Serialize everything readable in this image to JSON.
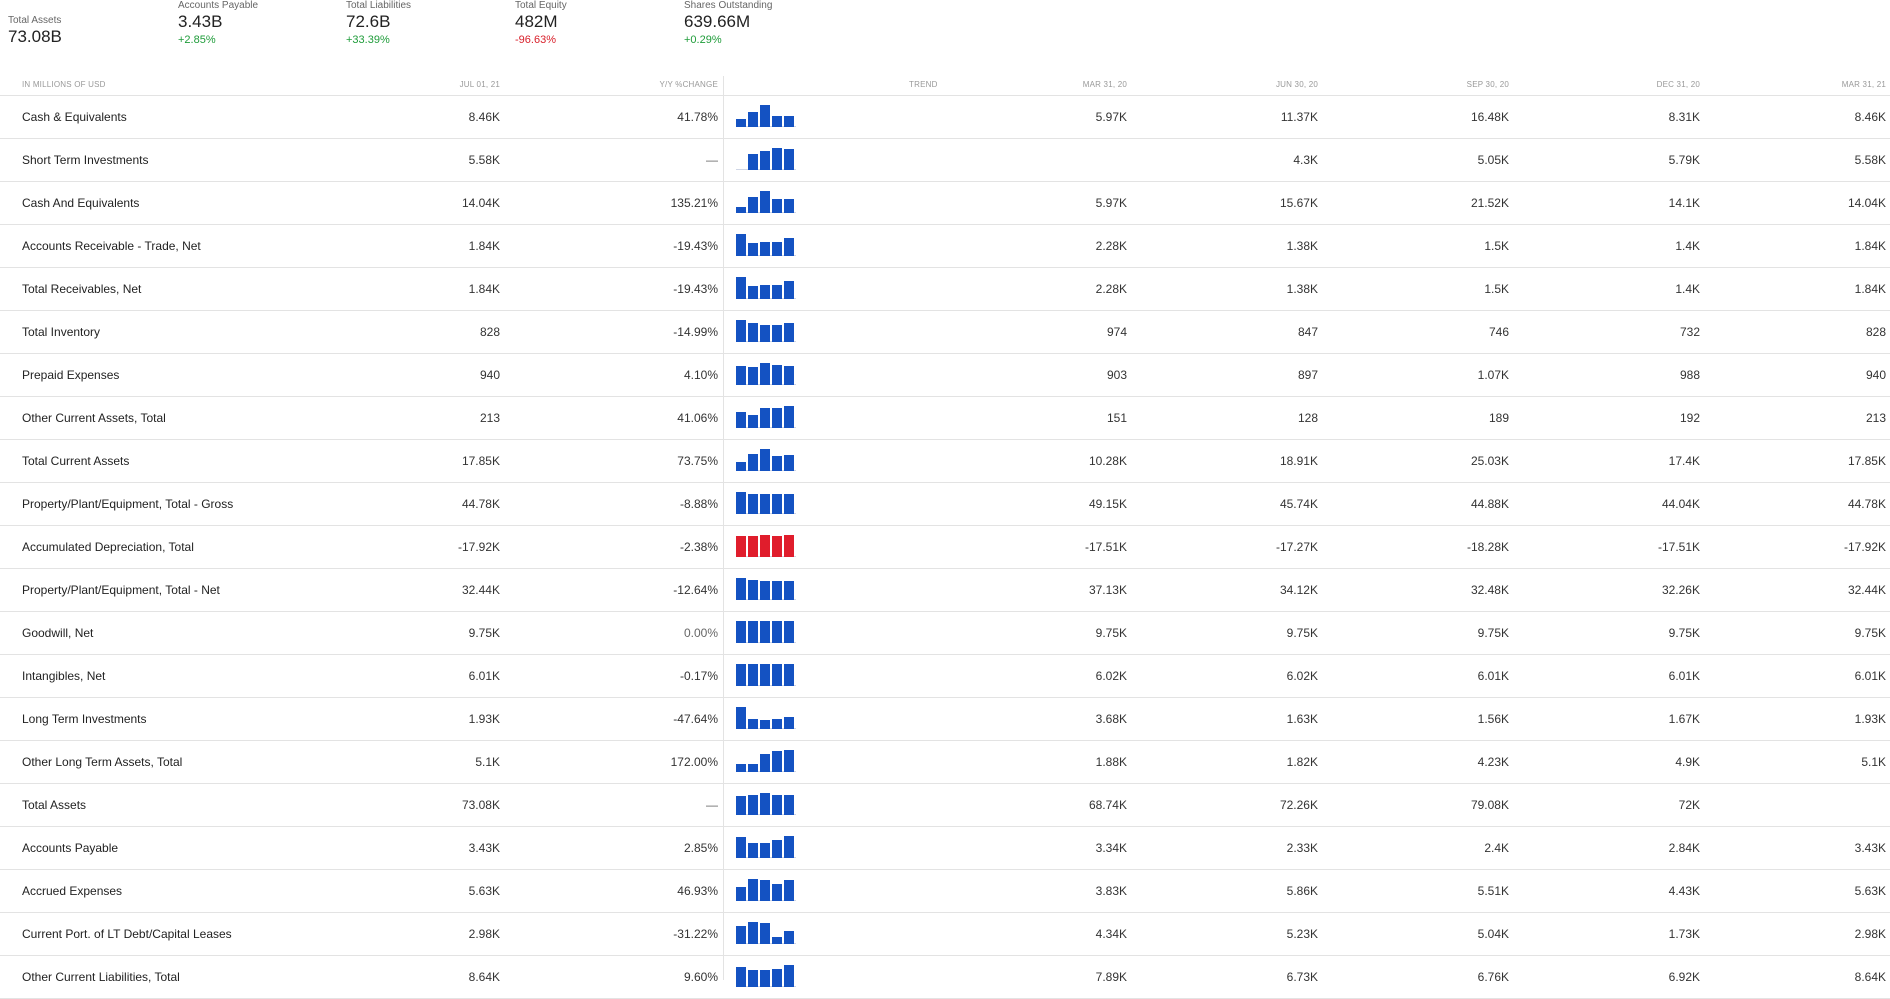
{
  "summary": [
    {
      "label": "Total Assets",
      "value": "73.08B",
      "change": "",
      "dir": "neutral"
    },
    {
      "label": "Accounts Payable",
      "value": "3.43B",
      "change": "+2.85%",
      "dir": "up"
    },
    {
      "label": "Total Liabilities",
      "value": "72.6B",
      "change": "+33.39%",
      "dir": "up"
    },
    {
      "label": "Total Equity",
      "value": "482M",
      "change": "-96.63%",
      "dir": "down"
    },
    {
      "label": "Shares Outstanding",
      "value": "639.66M",
      "change": "+0.29%",
      "dir": "up"
    }
  ],
  "headers": {
    "units": "IN MILLIONS OF USD",
    "latest": "JUL 01, 21",
    "yoy": "Y/Y %CHANGE",
    "trend": "TREND",
    "periods": [
      "MAR 31, 20",
      "JUN 30, 20",
      "SEP 30, 20",
      "DEC 31, 20",
      "MAR 31, 21"
    ]
  },
  "colors": {
    "bar_blue": "#1452c2",
    "bar_red": "#e01d2c",
    "up": "#1f9c3a",
    "down": "#d81f2a"
  },
  "rows": [
    {
      "name": "Cash & Equivalents",
      "latest": "8.46K",
      "yoy": "41.78%",
      "dir": "up",
      "periods": [
        "5.97K",
        "11.37K",
        "16.48K",
        "8.31K",
        "8.46K"
      ],
      "trend": [
        5.97,
        11.37,
        16.48,
        8.31,
        8.46
      ]
    },
    {
      "name": "Short Term Investments",
      "latest": "5.58K",
      "yoy": "—",
      "dir": "neutral",
      "periods": [
        "",
        "4.3K",
        "5.05K",
        "5.79K",
        "5.58K"
      ],
      "trend": [
        0,
        4.3,
        5.05,
        5.79,
        5.58
      ]
    },
    {
      "name": "Cash And Equivalents",
      "latest": "14.04K",
      "yoy": "135.21%",
      "dir": "up",
      "periods": [
        "5.97K",
        "15.67K",
        "21.52K",
        "14.1K",
        "14.04K"
      ],
      "trend": [
        5.97,
        15.67,
        21.52,
        14.1,
        14.04
      ]
    },
    {
      "name": "Accounts Receivable - Trade, Net",
      "latest": "1.84K",
      "yoy": "-19.43%",
      "dir": "down",
      "periods": [
        "2.28K",
        "1.38K",
        "1.5K",
        "1.4K",
        "1.84K"
      ],
      "trend": [
        2.28,
        1.38,
        1.5,
        1.4,
        1.84
      ]
    },
    {
      "name": "Total Receivables, Net",
      "latest": "1.84K",
      "yoy": "-19.43%",
      "dir": "down",
      "periods": [
        "2.28K",
        "1.38K",
        "1.5K",
        "1.4K",
        "1.84K"
      ],
      "trend": [
        2.28,
        1.38,
        1.5,
        1.4,
        1.84
      ]
    },
    {
      "name": "Total Inventory",
      "latest": "828",
      "yoy": "-14.99%",
      "dir": "down",
      "periods": [
        "974",
        "847",
        "746",
        "732",
        "828"
      ],
      "trend": [
        974,
        847,
        746,
        732,
        828
      ]
    },
    {
      "name": "Prepaid Expenses",
      "latest": "940",
      "yoy": "4.10%",
      "dir": "up",
      "periods": [
        "903",
        "897",
        "1.07K",
        "988",
        "940"
      ],
      "trend": [
        903,
        897,
        1070,
        988,
        940
      ]
    },
    {
      "name": "Other Current Assets, Total",
      "latest": "213",
      "yoy": "41.06%",
      "dir": "up",
      "periods": [
        "151",
        "128",
        "189",
        "192",
        "213"
      ],
      "trend": [
        151,
        128,
        189,
        192,
        213
      ]
    },
    {
      "name": "Total Current Assets",
      "latest": "17.85K",
      "yoy": "73.75%",
      "dir": "up",
      "periods": [
        "10.28K",
        "18.91K",
        "25.03K",
        "17.4K",
        "17.85K"
      ],
      "trend": [
        10.28,
        18.91,
        25.03,
        17.4,
        17.85
      ]
    },
    {
      "name": "Property/Plant/Equipment, Total - Gross",
      "latest": "44.78K",
      "yoy": "-8.88%",
      "dir": "down",
      "periods": [
        "49.15K",
        "45.74K",
        "44.88K",
        "44.04K",
        "44.78K"
      ],
      "trend": [
        49.15,
        45.74,
        44.88,
        44.04,
        44.78
      ]
    },
    {
      "name": "Accumulated Depreciation, Total",
      "latest": "-17.92K",
      "yoy": "-2.38%",
      "dir": "down",
      "periods": [
        "-17.51K",
        "-17.27K",
        "-18.28K",
        "-17.51K",
        "-17.92K"
      ],
      "trend": [
        -17.51,
        -17.27,
        -18.28,
        -17.51,
        -17.92
      ]
    },
    {
      "name": "Property/Plant/Equipment, Total - Net",
      "latest": "32.44K",
      "yoy": "-12.64%",
      "dir": "down",
      "periods": [
        "37.13K",
        "34.12K",
        "32.48K",
        "32.26K",
        "32.44K"
      ],
      "trend": [
        37.13,
        34.12,
        32.48,
        32.26,
        32.44
      ]
    },
    {
      "name": "Goodwill, Net",
      "latest": "9.75K",
      "yoy": "0.00%",
      "dir": "neutral",
      "periods": [
        "9.75K",
        "9.75K",
        "9.75K",
        "9.75K",
        "9.75K"
      ],
      "trend": [
        9.75,
        9.75,
        9.75,
        9.75,
        9.75
      ]
    },
    {
      "name": "Intangibles, Net",
      "latest": "6.01K",
      "yoy": "-0.17%",
      "dir": "down",
      "periods": [
        "6.02K",
        "6.02K",
        "6.01K",
        "6.01K",
        "6.01K"
      ],
      "trend": [
        6.02,
        6.02,
        6.01,
        6.01,
        6.01
      ]
    },
    {
      "name": "Long Term Investments",
      "latest": "1.93K",
      "yoy": "-47.64%",
      "dir": "down",
      "periods": [
        "3.68K",
        "1.63K",
        "1.56K",
        "1.67K",
        "1.93K"
      ],
      "trend": [
        3.68,
        1.63,
        1.56,
        1.67,
        1.93
      ]
    },
    {
      "name": "Other Long Term Assets, Total",
      "latest": "5.1K",
      "yoy": "172.00%",
      "dir": "up",
      "periods": [
        "1.88K",
        "1.82K",
        "4.23K",
        "4.9K",
        "5.1K"
      ],
      "trend": [
        1.88,
        1.82,
        4.23,
        4.9,
        5.1
      ]
    },
    {
      "name": "Total Assets",
      "latest": "73.08K",
      "yoy": "—",
      "dir": "neutral",
      "periods": [
        "68.74K",
        "72.26K",
        "79.08K",
        "72K",
        ""
      ],
      "trend": [
        68.74,
        72.26,
        79.08,
        72,
        73.08
      ]
    },
    {
      "name": "Accounts Payable",
      "latest": "3.43K",
      "yoy": "2.85%",
      "dir": "up",
      "periods": [
        "3.34K",
        "2.33K",
        "2.4K",
        "2.84K",
        "3.43K"
      ],
      "trend": [
        3.34,
        2.33,
        2.4,
        2.84,
        3.43
      ]
    },
    {
      "name": "Accrued Expenses",
      "latest": "5.63K",
      "yoy": "46.93%",
      "dir": "up",
      "periods": [
        "3.83K",
        "5.86K",
        "5.51K",
        "4.43K",
        "5.63K"
      ],
      "trend": [
        3.83,
        5.86,
        5.51,
        4.43,
        5.63
      ]
    },
    {
      "name": "Current Port. of LT Debt/Capital Leases",
      "latest": "2.98K",
      "yoy": "-31.22%",
      "dir": "down",
      "periods": [
        "4.34K",
        "5.23K",
        "5.04K",
        "1.73K",
        "2.98K"
      ],
      "trend": [
        4.34,
        5.23,
        5.04,
        1.73,
        2.98
      ]
    },
    {
      "name": "Other Current Liabilities, Total",
      "latest": "8.64K",
      "yoy": "9.60%",
      "dir": "up",
      "periods": [
        "7.89K",
        "6.73K",
        "6.76K",
        "6.92K",
        "8.64K"
      ],
      "trend": [
        7.89,
        6.73,
        6.76,
        6.92,
        8.64
      ]
    }
  ]
}
